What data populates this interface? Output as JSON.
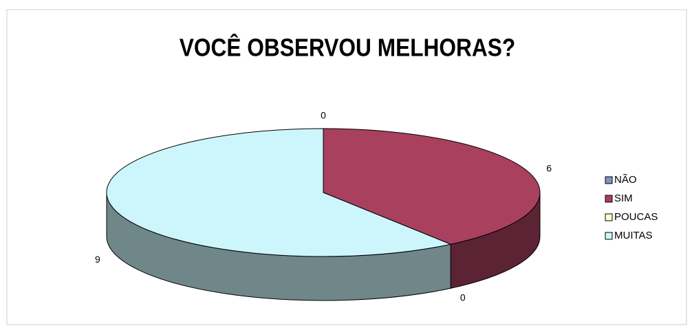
{
  "chart_data": {
    "type": "pie3d",
    "title": "VOCÊ OBSERVOU MELHORAS?",
    "categories": [
      "NÃO",
      "SIM",
      "POUCAS",
      "MUITAS"
    ],
    "values": [
      0,
      6,
      0,
      9
    ],
    "colors": [
      "#7f94c4",
      "#a8405e",
      "#ffffcc",
      "#ccf6fb"
    ],
    "legend": "right"
  }
}
